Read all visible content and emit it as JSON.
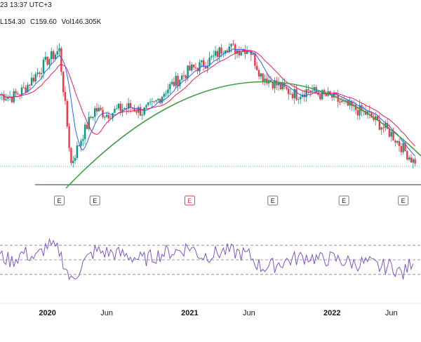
{
  "header": {
    "timestamp": "23 13:37 UTC+3",
    "low_label": "L",
    "low_value": "154.30",
    "close_label": "C",
    "close_value": "159.60",
    "volume_label": "Vol",
    "volume_value": "146.305K"
  },
  "colors": {
    "up": "#089981",
    "down": "#f23645",
    "ma_fast": "#2962ff",
    "ma_slow": "#e91e63",
    "arc": "#43a047",
    "rsi": "#7e57c2",
    "axis_text": "#131722",
    "grid_dash": "#787b86",
    "support_line": "#1f3a3a"
  },
  "earnings_markers": [
    {
      "label": "E",
      "date": "2020-02",
      "highlight": false
    },
    {
      "label": "E",
      "date": "2020-05",
      "highlight": false
    },
    {
      "label": "E",
      "date": "2021-01",
      "highlight": true
    },
    {
      "label": "E",
      "date": "2021-08",
      "highlight": false
    },
    {
      "label": "E",
      "date": "2022-02",
      "highlight": false
    },
    {
      "label": "E",
      "date": "2022-07",
      "highlight": false
    }
  ],
  "chart_data": [
    {
      "type": "line",
      "x": [
        "2019-09",
        "2019-10",
        "2019-11",
        "2019-12",
        "2020-01",
        "2020-02",
        "2020-03",
        "2020-04",
        "2020-05",
        "2020-06",
        "2020-07",
        "2020-08",
        "2020-09",
        "2020-10",
        "2020-11",
        "2020-12",
        "2021-01",
        "2021-02",
        "2021-03",
        "2021-04",
        "2021-05",
        "2021-06",
        "2021-07",
        "2021-08",
        "2021-09",
        "2021-10",
        "2021-11",
        "2021-12",
        "2022-01",
        "2022-02",
        "2022-03",
        "2022-04",
        "2022-05",
        "2022-06",
        "2022-07",
        "2022-08"
      ],
      "series": [
        {
          "values": [
            178,
            177,
            180,
            186,
            192,
            196,
            150,
            162,
            172,
            170,
            172,
            173,
            171,
            174,
            180,
            184,
            188,
            190,
            193,
            198,
            196,
            197,
            186,
            183,
            180,
            178,
            180,
            178,
            177,
            174,
            172,
            170,
            166,
            162,
            156,
            150
          ]
        }
      ],
      "xticks": [
        "2020",
        "Jun",
        "2021",
        "Jun",
        "2022",
        "Jun"
      ],
      "grid": false,
      "legend": "none"
    },
    {
      "type": "line",
      "x": [
        "2019-09",
        "2019-10",
        "2019-11",
        "2019-12",
        "2020-01",
        "2020-02",
        "2020-03",
        "2020-04",
        "2020-05",
        "2020-06",
        "2020-07",
        "2020-08",
        "2020-09",
        "2020-10",
        "2020-11",
        "2020-12",
        "2021-01",
        "2021-02",
        "2021-03",
        "2021-04",
        "2021-05",
        "2021-06",
        "2021-07",
        "2021-08",
        "2021-09",
        "2021-10",
        "2021-11",
        "2021-12",
        "2022-01",
        "2022-02",
        "2022-03",
        "2022-04",
        "2022-05",
        "2022-06",
        "2022-07",
        "2022-08"
      ],
      "series": [
        {
          "values": [
            55,
            48,
            60,
            52,
            70,
            62,
            20,
            45,
            62,
            60,
            58,
            55,
            50,
            55,
            60,
            62,
            68,
            55,
            58,
            62,
            60,
            56,
            40,
            42,
            48,
            52,
            55,
            50,
            52,
            48,
            45,
            46,
            40,
            42,
            30,
            55
          ]
        }
      ],
      "grid": false,
      "legend": "none"
    }
  ]
}
